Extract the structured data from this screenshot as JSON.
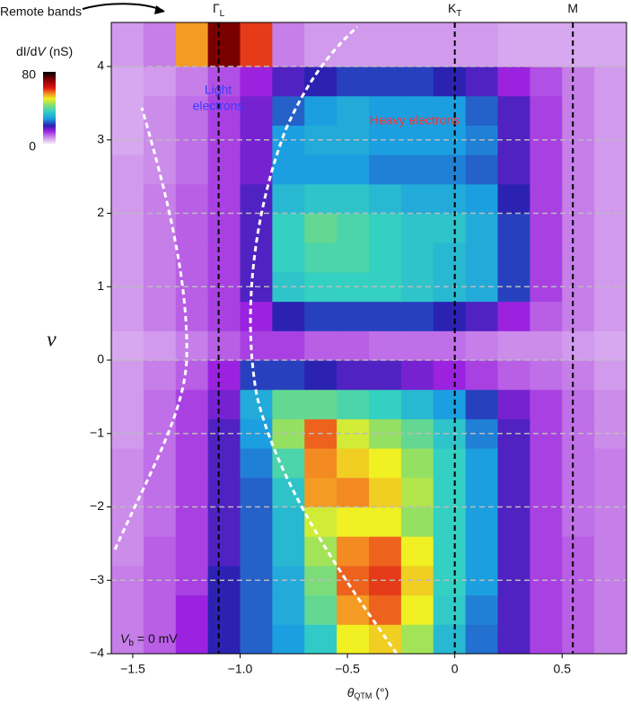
{
  "chart_data": {
    "type": "heatmap",
    "x_edges": [
      -1.6,
      -1.45,
      -1.3,
      -1.15,
      -1.0,
      -0.85,
      -0.7,
      -0.55,
      -0.4,
      -0.25,
      -0.1,
      0.05,
      0.2,
      0.35,
      0.5,
      0.65,
      0.8
    ],
    "y_edges": [
      -4,
      -3.6,
      -3.2,
      -2.8,
      -2.4,
      -2.0,
      -1.6,
      -1.2,
      -0.8,
      -0.4,
      0,
      0.4,
      0.8,
      1.2,
      1.6,
      2.0,
      2.4,
      2.8,
      3.2,
      3.6,
      4.0,
      4.6
    ],
    "z": [
      [
        8,
        10,
        14,
        20,
        24,
        28,
        35,
        50,
        52,
        45,
        32,
        25,
        18,
        12,
        10,
        8
      ],
      [
        8,
        10,
        14,
        20,
        24,
        30,
        40,
        55,
        58,
        50,
        35,
        26,
        18,
        12,
        10,
        8
      ],
      [
        8,
        10,
        12,
        20,
        24,
        30,
        42,
        58,
        60,
        52,
        36,
        28,
        18,
        12,
        10,
        8
      ],
      [
        7,
        10,
        12,
        18,
        24,
        32,
        45,
        56,
        58,
        50,
        36,
        28,
        18,
        12,
        10,
        8
      ],
      [
        7,
        9,
        12,
        18,
        24,
        32,
        48,
        50,
        50,
        44,
        36,
        28,
        18,
        12,
        9,
        8
      ],
      [
        7,
        9,
        12,
        18,
        24,
        34,
        55,
        56,
        52,
        46,
        36,
        28,
        18,
        12,
        9,
        8
      ],
      [
        7,
        9,
        12,
        18,
        26,
        38,
        56,
        52,
        50,
        44,
        36,
        28,
        18,
        12,
        9,
        8
      ],
      [
        6,
        9,
        12,
        18,
        28,
        44,
        58,
        48,
        44,
        40,
        34,
        26,
        18,
        12,
        9,
        7
      ],
      [
        6,
        9,
        12,
        16,
        30,
        40,
        40,
        38,
        36,
        32,
        28,
        22,
        16,
        12,
        9,
        7
      ],
      [
        6,
        8,
        10,
        14,
        22,
        22,
        20,
        18,
        18,
        16,
        14,
        12,
        10,
        9,
        8,
        6
      ],
      [
        5,
        6,
        8,
        10,
        12,
        12,
        10,
        10,
        9,
        9,
        9,
        8,
        7,
        7,
        6,
        5
      ],
      [
        6,
        8,
        10,
        12,
        14,
        20,
        22,
        22,
        22,
        22,
        20,
        18,
        14,
        10,
        8,
        6
      ],
      [
        6,
        8,
        10,
        12,
        18,
        34,
        36,
        36,
        36,
        34,
        32,
        30,
        22,
        12,
        8,
        6
      ],
      [
        6,
        8,
        10,
        12,
        18,
        36,
        38,
        38,
        36,
        34,
        32,
        30,
        22,
        12,
        8,
        6
      ],
      [
        6,
        8,
        10,
        12,
        18,
        36,
        40,
        38,
        36,
        34,
        34,
        30,
        22,
        12,
        8,
        6
      ],
      [
        6,
        8,
        10,
        12,
        18,
        32,
        34,
        34,
        32,
        30,
        30,
        28,
        20,
        12,
        8,
        6
      ],
      [
        6,
        7,
        9,
        12,
        16,
        28,
        28,
        28,
        26,
        26,
        26,
        24,
        18,
        12,
        8,
        6
      ],
      [
        5,
        7,
        9,
        12,
        16,
        28,
        30,
        30,
        28,
        28,
        28,
        26,
        18,
        12,
        8,
        6
      ],
      [
        5,
        7,
        9,
        12,
        16,
        24,
        28,
        30,
        28,
        28,
        28,
        24,
        18,
        12,
        8,
        6
      ],
      [
        5,
        6,
        8,
        11,
        14,
        18,
        20,
        22,
        22,
        22,
        20,
        18,
        14,
        11,
        8,
        6
      ],
      [
        6,
        8,
        55,
        72,
        60,
        8,
        6,
        6,
        6,
        6,
        6,
        6,
        5,
        5,
        5,
        5
      ]
    ],
    "xlim": [
      -1.6,
      0.8
    ],
    "ylim": [
      -4,
      4.6
    ],
    "xticks": [
      {
        "value": -1.5,
        "label": "−1.5"
      },
      {
        "value": -1.0,
        "label": "−1.0"
      },
      {
        "value": -0.5,
        "label": "−0.5"
      },
      0,
      0.5
    ],
    "yticks": [
      {
        "value": -4,
        "label": "−4"
      },
      {
        "value": -3,
        "label": "−3"
      },
      {
        "value": -2,
        "label": "−2"
      },
      {
        "value": -1,
        "label": "−1"
      },
      0,
      1,
      2,
      3,
      4
    ],
    "grid": true,
    "zlim": [
      0,
      80
    ],
    "zticks": [
      0,
      80
    ],
    "colormap": [
      [
        0,
        "#f4ecfb"
      ],
      [
        8,
        "#c67ee8"
      ],
      [
        14,
        "#9b22df"
      ],
      [
        20,
        "#2b22b2"
      ],
      [
        28,
        "#1c9fe0"
      ],
      [
        36,
        "#34d0c2"
      ],
      [
        44,
        "#94e062"
      ],
      [
        50,
        "#f0f022"
      ],
      [
        56,
        "#f38a22"
      ],
      [
        62,
        "#e01414"
      ],
      [
        72,
        "#7a0000"
      ],
      [
        80,
        "#000000"
      ]
    ],
    "colorbar_label": {
      "pre": "dI/d",
      "var": "V",
      "post": "(nS)"
    },
    "ylabel": "ν",
    "xlabel": {
      "var": "θ",
      "sub": "QTM",
      "unit": "(°)"
    },
    "markers": [
      {
        "x": -1.1,
        "name": "Γ",
        "sub": "L"
      },
      {
        "x": 0,
        "name": "K",
        "sub": "T"
      },
      {
        "x": 0.55,
        "name": "M"
      }
    ],
    "remote_bands_label": "Remote bands",
    "light_electrons_label": [
      "Light",
      "electrons"
    ],
    "heavy_electrons_label": "Heavy electrons",
    "bias_label": {
      "var": "V",
      "sub": "b",
      "rest": "= 0 mV"
    }
  }
}
